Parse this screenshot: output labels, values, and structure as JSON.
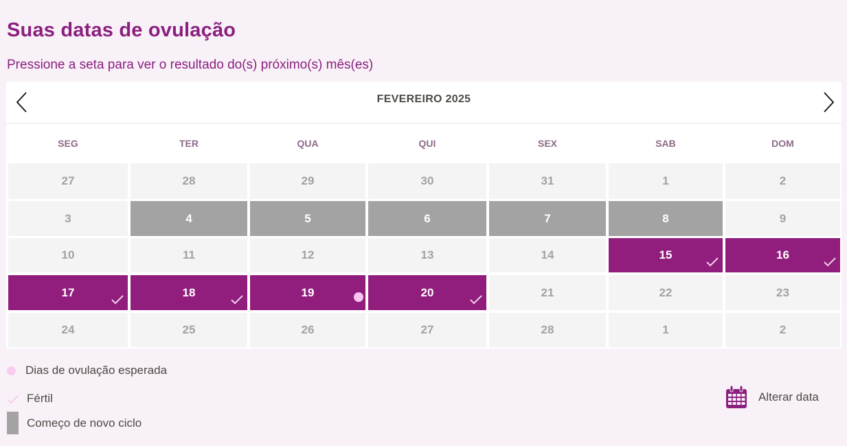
{
  "page": {
    "title": "Suas datas de ovulação",
    "subtitle": "Pressione a seta para ver o resultado do(s) próximo(s) mês(es)"
  },
  "calendar": {
    "month_label": "FEVEREIRO 2025",
    "prev_icon": "chevron-left-icon",
    "next_icon": "chevron-right-icon",
    "weekdays": [
      "SEG",
      "TER",
      "QUA",
      "QUI",
      "SEX",
      "SAB",
      "DOM"
    ],
    "colors": {
      "fertile": "#911e7d",
      "cycle_start": "#a3a3a3",
      "default_cell": "#f4f4f4",
      "ovulation_dot": "#f7c5ef",
      "title": "#8a1f7e"
    },
    "weeks": [
      [
        {
          "day": "27",
          "type": "default"
        },
        {
          "day": "28",
          "type": "default"
        },
        {
          "day": "29",
          "type": "default"
        },
        {
          "day": "30",
          "type": "default"
        },
        {
          "day": "31",
          "type": "default"
        },
        {
          "day": "1",
          "type": "default"
        },
        {
          "day": "2",
          "type": "default"
        }
      ],
      [
        {
          "day": "3",
          "type": "default"
        },
        {
          "day": "4",
          "type": "cycle"
        },
        {
          "day": "5",
          "type": "cycle"
        },
        {
          "day": "6",
          "type": "cycle"
        },
        {
          "day": "7",
          "type": "cycle"
        },
        {
          "day": "8",
          "type": "cycle"
        },
        {
          "day": "9",
          "type": "default"
        }
      ],
      [
        {
          "day": "10",
          "type": "default"
        },
        {
          "day": "11",
          "type": "default"
        },
        {
          "day": "12",
          "type": "default"
        },
        {
          "day": "13",
          "type": "default"
        },
        {
          "day": "14",
          "type": "default"
        },
        {
          "day": "15",
          "type": "fertile",
          "marker": "check"
        },
        {
          "day": "16",
          "type": "fertile",
          "marker": "check"
        }
      ],
      [
        {
          "day": "17",
          "type": "fertile",
          "marker": "check"
        },
        {
          "day": "18",
          "type": "fertile",
          "marker": "check"
        },
        {
          "day": "19",
          "type": "fertile",
          "marker": "dot"
        },
        {
          "day": "20",
          "type": "fertile",
          "marker": "check"
        },
        {
          "day": "21",
          "type": "default"
        },
        {
          "day": "22",
          "type": "default"
        },
        {
          "day": "23",
          "type": "default"
        }
      ],
      [
        {
          "day": "24",
          "type": "default"
        },
        {
          "day": "25",
          "type": "default"
        },
        {
          "day": "26",
          "type": "default"
        },
        {
          "day": "27",
          "type": "default"
        },
        {
          "day": "28",
          "type": "default"
        },
        {
          "day": "1",
          "type": "default"
        },
        {
          "day": "2",
          "type": "default"
        }
      ]
    ]
  },
  "legend": {
    "ovulation": "Dias de ovulação esperada",
    "fertile": "Fértil",
    "cycle_start": "Começo de novo ciclo"
  },
  "actions": {
    "change_date": "Alterar data",
    "change_date_icon": "calendar-icon"
  }
}
